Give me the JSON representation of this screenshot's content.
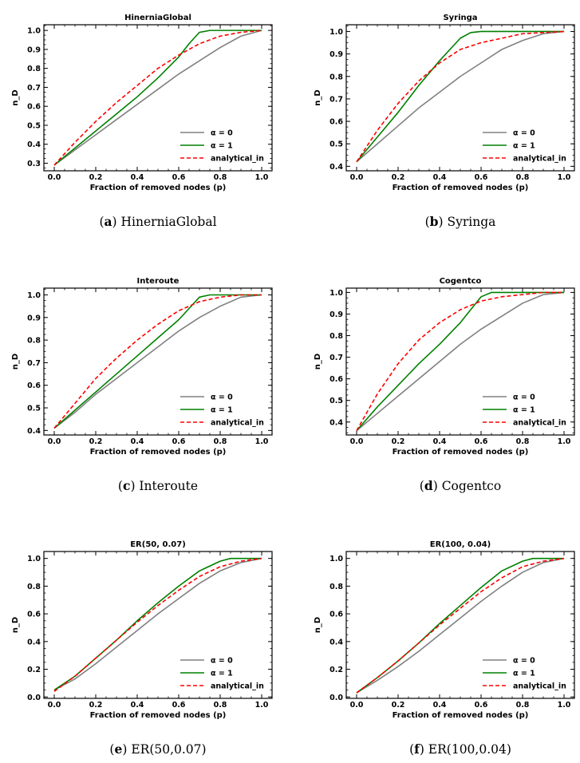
{
  "colors": {
    "alpha0": "#808080",
    "alpha1": "#008000",
    "analytical": "#ff0000"
  },
  "chart_data": [
    {
      "type": "line",
      "title": "HinerniaGlobal",
      "caption_letter": "a",
      "caption_name": "HinerniaGlobal",
      "xlabel": "Fraction of removed nodes (p)",
      "ylabel": "n_D",
      "xlim": [
        -0.05,
        1.05
      ],
      "ylim": [
        0.26,
        1.03
      ],
      "xticks": [
        "0.0",
        "0.2",
        "0.4",
        "0.6",
        "0.8",
        "1.0"
      ],
      "yticks": [
        "0.3",
        "0.4",
        "0.5",
        "0.6",
        "0.7",
        "0.8",
        "0.9",
        "1.0"
      ],
      "legend_position": "lower right",
      "series": [
        {
          "name": "α = 0",
          "color": "alpha0",
          "dash": false,
          "x": [
            0,
            0.1,
            0.2,
            0.3,
            0.4,
            0.5,
            0.6,
            0.7,
            0.8,
            0.9,
            1.0
          ],
          "y": [
            0.29,
            0.37,
            0.45,
            0.53,
            0.61,
            0.69,
            0.77,
            0.84,
            0.91,
            0.97,
            1.0
          ]
        },
        {
          "name": "α = 1",
          "color": "alpha1",
          "dash": false,
          "x": [
            0,
            0.1,
            0.2,
            0.3,
            0.4,
            0.5,
            0.6,
            0.65,
            0.7,
            0.75,
            0.8,
            0.9,
            1.0
          ],
          "y": [
            0.29,
            0.38,
            0.47,
            0.56,
            0.65,
            0.75,
            0.86,
            0.93,
            0.99,
            1.0,
            1.0,
            1.0,
            1.0
          ]
        },
        {
          "name": "analytical_in",
          "color": "analytical",
          "dash": true,
          "x": [
            0,
            0.1,
            0.2,
            0.3,
            0.4,
            0.5,
            0.6,
            0.7,
            0.8,
            0.9,
            1.0
          ],
          "y": [
            0.29,
            0.41,
            0.52,
            0.62,
            0.71,
            0.8,
            0.87,
            0.93,
            0.97,
            0.99,
            1.0
          ]
        }
      ]
    },
    {
      "type": "line",
      "title": "Syringa",
      "caption_letter": "b",
      "caption_name": "Syringa",
      "xlabel": "Fraction of removed nodes (p)",
      "ylabel": "n_D",
      "xlim": [
        -0.05,
        1.05
      ],
      "ylim": [
        0.38,
        1.03
      ],
      "xticks": [
        "0.0",
        "0.2",
        "0.4",
        "0.6",
        "0.8",
        "1.0"
      ],
      "yticks": [
        "0.4",
        "0.5",
        "0.6",
        "0.7",
        "0.8",
        "0.9",
        "1.0"
      ],
      "legend_position": "lower right",
      "series": [
        {
          "name": "α = 0",
          "color": "alpha0",
          "dash": false,
          "x": [
            0,
            0.1,
            0.2,
            0.3,
            0.4,
            0.5,
            0.6,
            0.7,
            0.8,
            0.9,
            1.0
          ],
          "y": [
            0.42,
            0.5,
            0.58,
            0.66,
            0.73,
            0.8,
            0.86,
            0.92,
            0.96,
            0.99,
            1.0
          ]
        },
        {
          "name": "α = 1",
          "color": "alpha1",
          "dash": false,
          "x": [
            0,
            0.1,
            0.2,
            0.3,
            0.4,
            0.5,
            0.55,
            0.6,
            0.7,
            0.8,
            0.9,
            1.0
          ],
          "y": [
            0.42,
            0.53,
            0.64,
            0.76,
            0.87,
            0.97,
            0.995,
            1.0,
            1.0,
            1.0,
            1.0,
            1.0
          ]
        },
        {
          "name": "analytical_in",
          "color": "analytical",
          "dash": true,
          "x": [
            0,
            0.1,
            0.2,
            0.3,
            0.4,
            0.5,
            0.6,
            0.7,
            0.8,
            0.9,
            1.0
          ],
          "y": [
            0.42,
            0.56,
            0.68,
            0.78,
            0.86,
            0.92,
            0.95,
            0.97,
            0.99,
            0.995,
            1.0
          ]
        }
      ]
    },
    {
      "type": "line",
      "title": "Interoute",
      "caption_letter": "c",
      "caption_name": "Interoute",
      "xlabel": "Fraction of removed nodes (p)",
      "ylabel": "n_D",
      "xlim": [
        -0.05,
        1.05
      ],
      "ylim": [
        0.38,
        1.03
      ],
      "xticks": [
        "0.0",
        "0.2",
        "0.4",
        "0.6",
        "0.8",
        "1.0"
      ],
      "yticks": [
        "0.4",
        "0.5",
        "0.6",
        "0.7",
        "0.8",
        "0.9",
        "1.0"
      ],
      "legend_position": "lower right",
      "series": [
        {
          "name": "α = 0",
          "color": "alpha0",
          "dash": false,
          "x": [
            0,
            0.1,
            0.2,
            0.3,
            0.4,
            0.5,
            0.6,
            0.7,
            0.8,
            0.9,
            1.0
          ],
          "y": [
            0.41,
            0.48,
            0.56,
            0.63,
            0.7,
            0.77,
            0.84,
            0.9,
            0.95,
            0.99,
            1.0
          ]
        },
        {
          "name": "α = 1",
          "color": "alpha1",
          "dash": false,
          "x": [
            0,
            0.1,
            0.2,
            0.3,
            0.4,
            0.5,
            0.6,
            0.65,
            0.7,
            0.75,
            0.8,
            0.9,
            1.0
          ],
          "y": [
            0.41,
            0.49,
            0.57,
            0.65,
            0.73,
            0.81,
            0.89,
            0.94,
            0.99,
            1.0,
            1.0,
            1.0,
            1.0
          ]
        },
        {
          "name": "analytical_in",
          "color": "analytical",
          "dash": true,
          "x": [
            0,
            0.1,
            0.2,
            0.3,
            0.4,
            0.5,
            0.6,
            0.7,
            0.8,
            0.9,
            1.0
          ],
          "y": [
            0.41,
            0.52,
            0.63,
            0.72,
            0.8,
            0.87,
            0.93,
            0.97,
            0.99,
            1.0,
            1.0
          ]
        }
      ]
    },
    {
      "type": "line",
      "title": "Cogentco",
      "caption_letter": "d",
      "caption_name": "Cogentco",
      "xlabel": "Fraction of removed nodes (p)",
      "ylabel": "n_D",
      "xlim": [
        -0.05,
        1.05
      ],
      "ylim": [
        0.34,
        1.02
      ],
      "xticks": [
        "0.0",
        "0.2",
        "0.4",
        "0.6",
        "0.8",
        "1.0"
      ],
      "yticks": [
        "0.4",
        "0.5",
        "0.6",
        "0.7",
        "0.8",
        "0.9",
        "1.0"
      ],
      "legend_position": "lower right",
      "series": [
        {
          "name": "α = 0",
          "color": "alpha0",
          "dash": false,
          "x": [
            0,
            0.1,
            0.2,
            0.3,
            0.4,
            0.5,
            0.6,
            0.7,
            0.8,
            0.9,
            1.0
          ],
          "y": [
            0.36,
            0.44,
            0.52,
            0.6,
            0.68,
            0.76,
            0.83,
            0.89,
            0.95,
            0.99,
            1.0
          ]
        },
        {
          "name": "α = 1",
          "color": "alpha1",
          "dash": false,
          "x": [
            0,
            0.1,
            0.2,
            0.3,
            0.4,
            0.5,
            0.55,
            0.6,
            0.65,
            0.7,
            0.8,
            0.9,
            1.0
          ],
          "y": [
            0.36,
            0.47,
            0.57,
            0.67,
            0.76,
            0.86,
            0.92,
            0.98,
            1.0,
            1.0,
            1.0,
            1.0,
            1.0
          ]
        },
        {
          "name": "analytical_in",
          "color": "analytical",
          "dash": true,
          "x": [
            0,
            0.1,
            0.2,
            0.3,
            0.4,
            0.5,
            0.6,
            0.7,
            0.8,
            0.9,
            1.0
          ],
          "y": [
            0.36,
            0.53,
            0.67,
            0.78,
            0.86,
            0.92,
            0.96,
            0.98,
            0.99,
            1.0,
            1.0
          ]
        }
      ]
    },
    {
      "type": "line",
      "title": "ER(50, 0.07)",
      "caption_letter": "e",
      "caption_name": "ER(50,0.07)",
      "xlabel": "Fraction of removed nodes (p)",
      "ylabel": "n_D",
      "xlim": [
        -0.05,
        1.05
      ],
      "ylim": [
        -0.01,
        1.05
      ],
      "xticks": [
        "0.0",
        "0.2",
        "0.4",
        "0.6",
        "0.8",
        "1.0"
      ],
      "yticks": [
        "0.0",
        "0.2",
        "0.4",
        "0.6",
        "0.8",
        "1.0"
      ],
      "legend_position": "lower right",
      "series": [
        {
          "name": "α = 0",
          "color": "alpha0",
          "dash": false,
          "x": [
            0,
            0.1,
            0.2,
            0.3,
            0.4,
            0.5,
            0.6,
            0.7,
            0.8,
            0.9,
            1.0
          ],
          "y": [
            0.05,
            0.13,
            0.24,
            0.36,
            0.48,
            0.6,
            0.71,
            0.82,
            0.91,
            0.97,
            1.0
          ]
        },
        {
          "name": "α = 1",
          "color": "alpha1",
          "dash": false,
          "x": [
            0,
            0.1,
            0.2,
            0.3,
            0.4,
            0.5,
            0.6,
            0.7,
            0.8,
            0.85,
            0.9,
            1.0
          ],
          "y": [
            0.05,
            0.15,
            0.28,
            0.41,
            0.55,
            0.68,
            0.8,
            0.91,
            0.98,
            1.0,
            1.0,
            1.0
          ]
        },
        {
          "name": "analytical_in",
          "color": "analytical",
          "dash": true,
          "x": [
            0,
            0.1,
            0.2,
            0.3,
            0.4,
            0.5,
            0.6,
            0.7,
            0.8,
            0.9,
            1.0
          ],
          "y": [
            0.04,
            0.15,
            0.28,
            0.41,
            0.54,
            0.66,
            0.77,
            0.87,
            0.94,
            0.98,
            1.0
          ]
        }
      ]
    },
    {
      "type": "line",
      "title": "ER(100, 0.04)",
      "caption_letter": "f",
      "caption_name": "ER(100,0.04)",
      "xlabel": "Fraction of removed nodes (p)",
      "ylabel": "n_D",
      "xlim": [
        -0.05,
        1.05
      ],
      "ylim": [
        -0.01,
        1.05
      ],
      "xticks": [
        "0.0",
        "0.2",
        "0.4",
        "0.6",
        "0.8",
        "1.0"
      ],
      "yticks": [
        "0.0",
        "0.2",
        "0.4",
        "0.6",
        "0.8",
        "1.0"
      ],
      "legend_position": "lower right",
      "series": [
        {
          "name": "α = 0",
          "color": "alpha0",
          "dash": false,
          "x": [
            0,
            0.1,
            0.2,
            0.3,
            0.4,
            0.5,
            0.6,
            0.7,
            0.8,
            0.9,
            1.0
          ],
          "y": [
            0.03,
            0.12,
            0.22,
            0.33,
            0.45,
            0.57,
            0.69,
            0.8,
            0.9,
            0.97,
            1.0
          ]
        },
        {
          "name": "α = 1",
          "color": "alpha1",
          "dash": false,
          "x": [
            0,
            0.1,
            0.2,
            0.3,
            0.4,
            0.5,
            0.6,
            0.7,
            0.8,
            0.85,
            0.9,
            1.0
          ],
          "y": [
            0.03,
            0.14,
            0.26,
            0.39,
            0.53,
            0.66,
            0.79,
            0.91,
            0.98,
            1.0,
            1.0,
            1.0
          ]
        },
        {
          "name": "analytical_in",
          "color": "analytical",
          "dash": true,
          "x": [
            0,
            0.1,
            0.2,
            0.3,
            0.4,
            0.5,
            0.6,
            0.7,
            0.8,
            0.9,
            1.0
          ],
          "y": [
            0.03,
            0.14,
            0.26,
            0.39,
            0.52,
            0.64,
            0.76,
            0.86,
            0.94,
            0.98,
            1.0
          ]
        }
      ]
    }
  ]
}
